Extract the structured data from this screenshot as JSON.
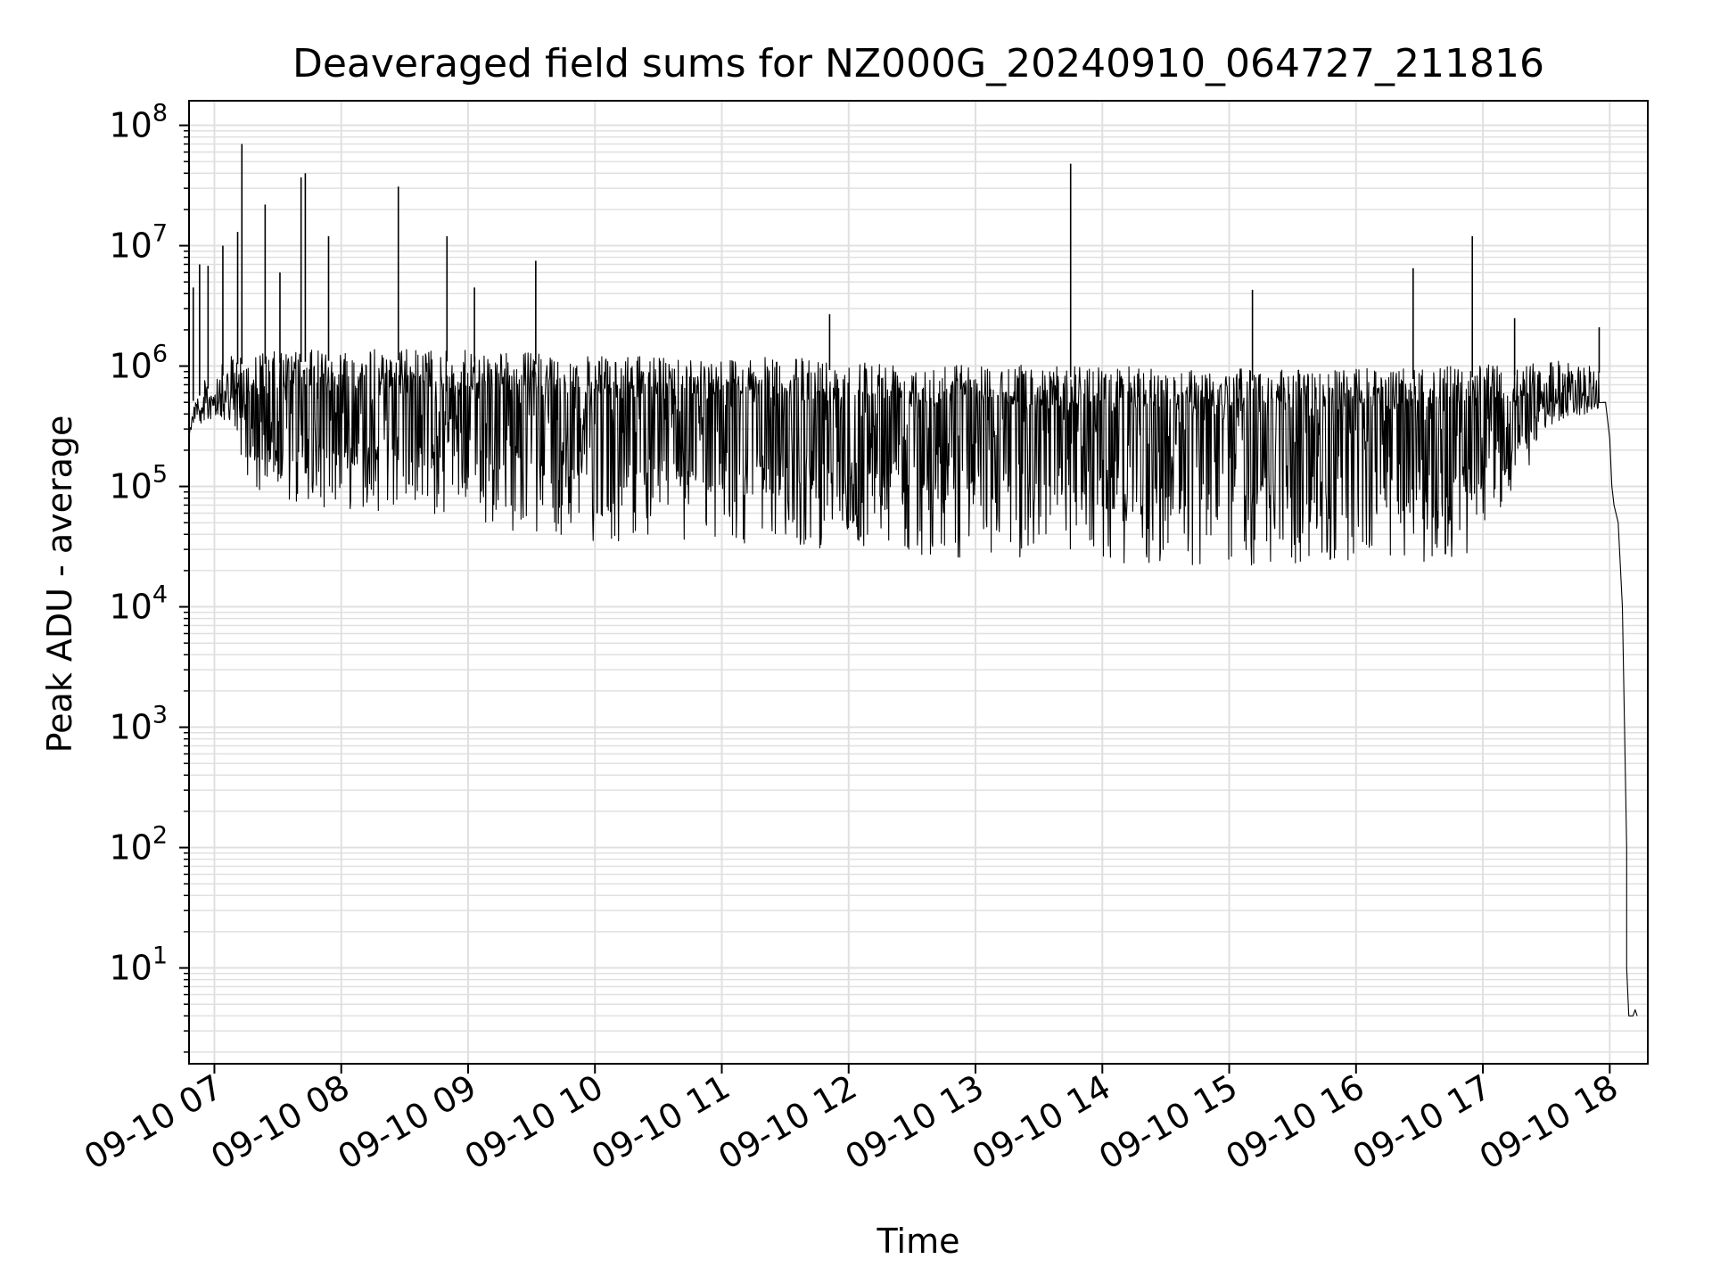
{
  "chart_data": {
    "type": "line",
    "title": "Deaveraged field sums for NZ000G_20240910_064727_211816",
    "xlabel": "Time",
    "ylabel": "Peak ADU - average",
    "x_start": "2024-09-10 06:48",
    "x_end": "2024-09-10 18:18",
    "xlim": [
      "2024-09-10 06:48",
      "2024-09-10 18:18"
    ],
    "y_scale": "log",
    "ylim": [
      1.6,
      160000000
    ],
    "xticks": [
      {
        "value": "2024-09-10 07:00",
        "label": "09-10 07"
      },
      {
        "value": "2024-09-10 08:00",
        "label": "09-10 08"
      },
      {
        "value": "2024-09-10 09:00",
        "label": "09-10 09"
      },
      {
        "value": "2024-09-10 10:00",
        "label": "09-10 10"
      },
      {
        "value": "2024-09-10 11:00",
        "label": "09-10 11"
      },
      {
        "value": "2024-09-10 12:00",
        "label": "09-10 12"
      },
      {
        "value": "2024-09-10 13:00",
        "label": "09-10 13"
      },
      {
        "value": "2024-09-10 14:00",
        "label": "09-10 14"
      },
      {
        "value": "2024-09-10 15:00",
        "label": "09-10 15"
      },
      {
        "value": "2024-09-10 16:00",
        "label": "09-10 16"
      },
      {
        "value": "2024-09-10 17:00",
        "label": "09-10 17"
      },
      {
        "value": "2024-09-10 18:00",
        "label": "09-10 18"
      }
    ],
    "yticks": [
      {
        "value": 10,
        "base": "10",
        "exp": "1"
      },
      {
        "value": 100,
        "base": "10",
        "exp": "2"
      },
      {
        "value": 1000,
        "base": "10",
        "exp": "3"
      },
      {
        "value": 10000,
        "base": "10",
        "exp": "4"
      },
      {
        "value": 100000,
        "base": "10",
        "exp": "5"
      },
      {
        "value": 1000000,
        "base": "10",
        "exp": "6"
      },
      {
        "value": 10000000,
        "base": "10",
        "exp": "7"
      },
      {
        "value": 100000000,
        "base": "10",
        "exp": "8"
      }
    ],
    "grid": true,
    "line_color": "#000000",
    "grid_color": "#e0e0e0",
    "series": [
      {
        "envelope": {
          "points": [
            {
              "t": "2024-09-10 06:48",
              "upper": 600000,
              "lower": 350000
            },
            {
              "t": "2024-09-10 07:00",
              "upper": 900000,
              "lower": 450000
            },
            {
              "t": "2024-09-10 07:10",
              "upper": 1300000,
              "lower": 250000
            },
            {
              "t": "2024-09-10 07:20",
              "upper": 1300000,
              "lower": 70000
            },
            {
              "t": "2024-09-10 08:00",
              "upper": 1400000,
              "lower": 65000
            },
            {
              "t": "2024-09-10 08:30",
              "upper": 1400000,
              "lower": 60000
            },
            {
              "t": "2024-09-10 09:00",
              "upper": 1350000,
              "lower": 50000
            },
            {
              "t": "2024-09-10 09:30",
              "upper": 1300000,
              "lower": 40000
            },
            {
              "t": "2024-09-10 10:00",
              "upper": 1200000,
              "lower": 35000
            },
            {
              "t": "2024-09-10 11:00",
              "upper": 1200000,
              "lower": 33000
            },
            {
              "t": "2024-09-10 12:00",
              "upper": 1150000,
              "lower": 30000
            },
            {
              "t": "2024-09-10 13:00",
              "upper": 1050000,
              "lower": 25000
            },
            {
              "t": "2024-09-10 14:00",
              "upper": 1000000,
              "lower": 21000
            },
            {
              "t": "2024-09-10 15:00",
              "upper": 950000,
              "lower": 21000
            },
            {
              "t": "2024-09-10 16:00",
              "upper": 950000,
              "lower": 23000
            },
            {
              "t": "2024-09-10 16:50",
              "upper": 1000000,
              "lower": 24000
            },
            {
              "t": "2024-09-10 17:15",
              "upper": 1050000,
              "lower": 80000
            },
            {
              "t": "2024-09-10 17:30",
              "upper": 1100000,
              "lower": 300000
            },
            {
              "t": "2024-09-10 17:55",
              "upper": 1100000,
              "lower": 500000
            }
          ]
        },
        "spikes": [
          {
            "t": "2024-09-10 06:50",
            "value": 4500000
          },
          {
            "t": "2024-09-10 06:53",
            "value": 7000000
          },
          {
            "t": "2024-09-10 06:57",
            "value": 6800000
          },
          {
            "t": "2024-09-10 07:04",
            "value": 10000000
          },
          {
            "t": "2024-09-10 07:11",
            "value": 13000000
          },
          {
            "t": "2024-09-10 07:13",
            "value": 70000000
          },
          {
            "t": "2024-09-10 07:24",
            "value": 22000000
          },
          {
            "t": "2024-09-10 07:31",
            "value": 6000000
          },
          {
            "t": "2024-09-10 07:41",
            "value": 37000000
          },
          {
            "t": "2024-09-10 07:43",
            "value": 40000000
          },
          {
            "t": "2024-09-10 07:54",
            "value": 12000000
          },
          {
            "t": "2024-09-10 08:27",
            "value": 31000000
          },
          {
            "t": "2024-09-10 08:50",
            "value": 12000000
          },
          {
            "t": "2024-09-10 09:03",
            "value": 4500000
          },
          {
            "t": "2024-09-10 09:32",
            "value": 7500000
          },
          {
            "t": "2024-09-10 11:51",
            "value": 2700000
          },
          {
            "t": "2024-09-10 13:45",
            "value": 48000000
          },
          {
            "t": "2024-09-10 15:11",
            "value": 4300000
          },
          {
            "t": "2024-09-10 16:27",
            "value": 6500000
          },
          {
            "t": "2024-09-10 16:55",
            "value": 12000000
          },
          {
            "t": "2024-09-10 17:15",
            "value": 2500000
          },
          {
            "t": "2024-09-10 17:55",
            "value": 2100000
          }
        ],
        "tail": [
          {
            "t": "2024-09-10 17:58",
            "value": 500000
          },
          {
            "t": "2024-09-10 18:00",
            "value": 250000
          },
          {
            "t": "2024-09-10 18:01",
            "value": 100000
          },
          {
            "t": "2024-09-10 18:02",
            "value": 70000
          },
          {
            "t": "2024-09-10 18:04",
            "value": 50000
          },
          {
            "t": "2024-09-10 18:06",
            "value": 10000
          },
          {
            "t": "2024-09-10 18:07",
            "value": 1000
          },
          {
            "t": "2024-09-10 18:08",
            "value": 100
          },
          {
            "t": "2024-09-10 18:08",
            "value": 10
          },
          {
            "t": "2024-09-10 18:09",
            "value": 4
          },
          {
            "t": "2024-09-10 18:11",
            "value": 4
          },
          {
            "t": "2024-09-10 18:12",
            "value": 4.5
          },
          {
            "t": "2024-09-10 18:13",
            "value": 4
          }
        ]
      }
    ]
  }
}
